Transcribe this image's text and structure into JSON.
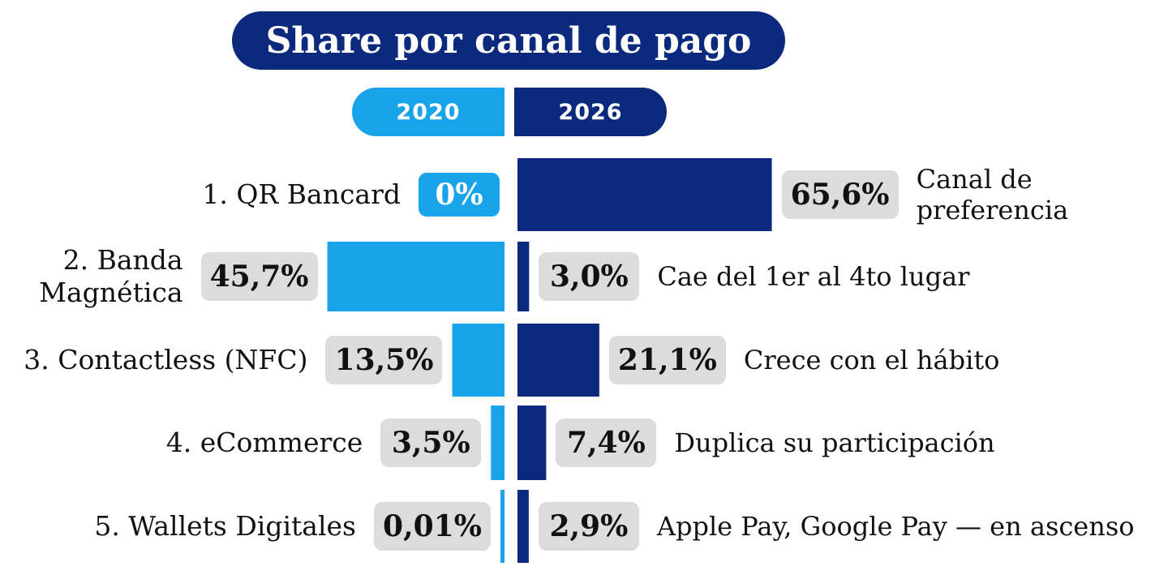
{
  "chart_data": {
    "type": "bar",
    "title": "Share por canal de pago",
    "series": [
      {
        "name": "2020",
        "color": "#19a3ea",
        "values": [
          0,
          45.7,
          13.5,
          3.5,
          0.01
        ]
      },
      {
        "name": "2026",
        "color": "#0b2a7d",
        "values": [
          65.6,
          3.0,
          21.1,
          7.4,
          2.9
        ]
      }
    ],
    "categories": [
      "1. QR Bancard",
      "2. Banda\nMagnética",
      "3. Contactless (NFC)",
      "4. eCommerce",
      "5. Wallets Digitales"
    ],
    "labels_2020": [
      "0%",
      "45,7%",
      "13,5%",
      "3,5%",
      "0,01%"
    ],
    "labels_2026": [
      "65,6%",
      "3,0%",
      "21,1%",
      "7,4%",
      "2,9%"
    ],
    "notes": [
      "Canal de\npreferencia",
      "Cae del 1er al 4to lugar",
      "Crece con el hábito",
      "Duplica su participación",
      "Apple Pay, Google Pay — en ascenso"
    ],
    "xlim": [
      0,
      70
    ],
    "legend": "top-center"
  }
}
